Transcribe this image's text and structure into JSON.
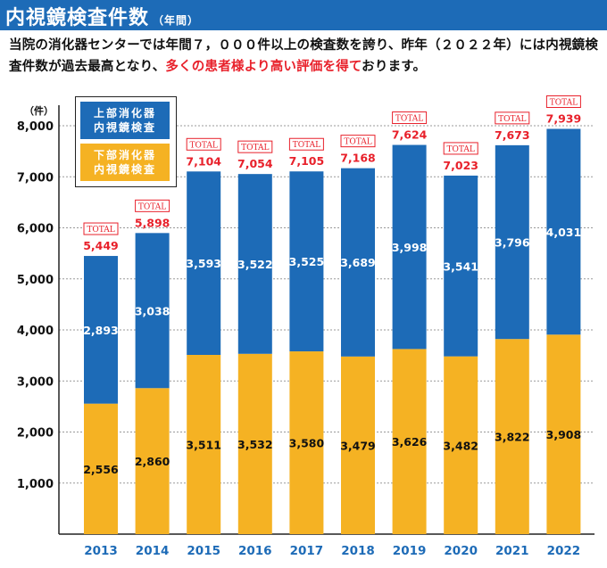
{
  "header": {
    "title": "内視鏡検査件数",
    "title_suffix": "（年間）"
  },
  "intro": {
    "text_before": "当院の消化器センターでは年間７，０００件以上の検査数を誇り、昨年（２０２２年）には内視鏡検査件数が過去最高となり、",
    "text_highlight": "多くの患者様より高い評価を得て",
    "text_after": "おります。"
  },
  "colors": {
    "upper": "#1d6bb7",
    "lower": "#f5b223",
    "total_text": "#e8212b",
    "header_bar": "#1d6bb7"
  },
  "chart_data": {
    "type": "bar",
    "stacked": true,
    "y_unit_label": "（件）",
    "categories": [
      "2013",
      "2014",
      "2015",
      "2016",
      "2017",
      "2018",
      "2019",
      "2020",
      "2021",
      "2022"
    ],
    "series": [
      {
        "name": "下部消化器内視鏡検査",
        "legend_lines": [
          "下部消化器",
          "内視鏡検査"
        ],
        "values": [
          2556,
          2860,
          3511,
          3532,
          3580,
          3479,
          3626,
          3482,
          3822,
          3908
        ]
      },
      {
        "name": "上部消化器内視鏡検査",
        "legend_lines": [
          "上部消化器",
          "内視鏡検査"
        ],
        "values": [
          2893,
          3038,
          3593,
          3522,
          3525,
          3689,
          3998,
          3541,
          3796,
          4031
        ]
      }
    ],
    "totals": [
      5449,
      5898,
      7104,
      7054,
      7105,
      7168,
      7624,
      7023,
      7673,
      7939
    ],
    "total_tag": "TOTAL",
    "ylim": [
      0,
      8000
    ],
    "yticks": [
      1000,
      2000,
      3000,
      4000,
      5000,
      6000,
      7000,
      8000
    ],
    "grid": true,
    "legend_position": "top-left"
  }
}
